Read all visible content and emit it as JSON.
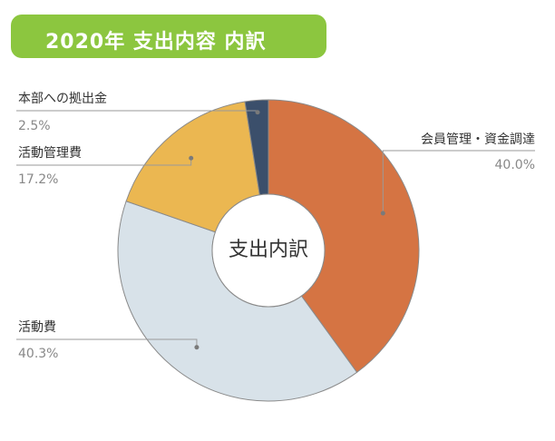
{
  "header": {
    "title": "2020年  支出内容 内訳"
  },
  "chart_data": {
    "type": "pie",
    "style": "donut",
    "title": "2020年  支出内容 内訳",
    "center_label": "支出内訳",
    "slices": [
      {
        "name": "会員管理・資金調達",
        "value": 40.0,
        "label": "40.0%",
        "color": "#d57443"
      },
      {
        "name": "活動費",
        "value": 40.3,
        "label": "40.3%",
        "color": "#d8e2e9"
      },
      {
        "name": "活動管理費",
        "value": 17.2,
        "label": "17.2%",
        "color": "#ebb751"
      },
      {
        "name": "本部への拠出金",
        "value": 2.5,
        "label": "2.5%",
        "color": "#3b4f6b"
      }
    ]
  }
}
